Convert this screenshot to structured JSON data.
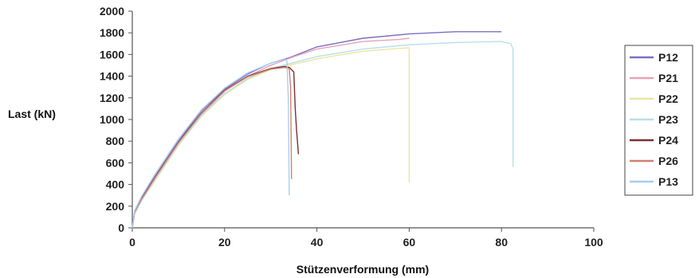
{
  "chart_data": {
    "type": "line",
    "xlabel": "Stützenverformung (mm)",
    "ylabel": "Last (kN)",
    "xlim": [
      0,
      100
    ],
    "ylim": [
      0,
      2000
    ],
    "x_ticks": [
      0,
      20,
      40,
      60,
      80,
      100
    ],
    "y_ticks": [
      0,
      200,
      400,
      600,
      800,
      1000,
      1200,
      1400,
      1600,
      1800,
      2000
    ],
    "legend_position": "right",
    "grid": false,
    "series": [
      {
        "name": "P12",
        "color": "#7b6fc4",
        "points": [
          [
            0,
            0
          ],
          [
            0.5,
            150
          ],
          [
            2,
            280
          ],
          [
            5,
            480
          ],
          [
            10,
            800
          ],
          [
            15,
            1080
          ],
          [
            20,
            1280
          ],
          [
            25,
            1420
          ],
          [
            30,
            1520
          ],
          [
            34,
            1570
          ],
          [
            40,
            1670
          ],
          [
            50,
            1750
          ],
          [
            60,
            1790
          ],
          [
            70,
            1810
          ],
          [
            80,
            1810
          ]
        ]
      },
      {
        "name": "P21",
        "color": "#e6a3b5",
        "points": [
          [
            0,
            0
          ],
          [
            0.5,
            140
          ],
          [
            2,
            260
          ],
          [
            5,
            460
          ],
          [
            10,
            780
          ],
          [
            15,
            1050
          ],
          [
            20,
            1260
          ],
          [
            25,
            1400
          ],
          [
            30,
            1500
          ],
          [
            35,
            1580
          ],
          [
            40,
            1650
          ],
          [
            50,
            1720
          ],
          [
            58,
            1740
          ],
          [
            60,
            1750
          ]
        ]
      },
      {
        "name": "P22",
        "color": "#e8e6a0",
        "points": [
          [
            0,
            0
          ],
          [
            0.5,
            130
          ],
          [
            2,
            250
          ],
          [
            5,
            440
          ],
          [
            10,
            760
          ],
          [
            15,
            1030
          ],
          [
            20,
            1230
          ],
          [
            25,
            1370
          ],
          [
            30,
            1460
          ],
          [
            40,
            1560
          ],
          [
            50,
            1630
          ],
          [
            59,
            1660
          ],
          [
            60,
            1660
          ],
          [
            60,
            1520
          ],
          [
            60,
            420
          ]
        ]
      },
      {
        "name": "P23",
        "color": "#b8dfe8",
        "points": [
          [
            0,
            0
          ],
          [
            0.5,
            130
          ],
          [
            2,
            250
          ],
          [
            5,
            450
          ],
          [
            10,
            770
          ],
          [
            15,
            1040
          ],
          [
            20,
            1240
          ],
          [
            25,
            1380
          ],
          [
            30,
            1470
          ],
          [
            40,
            1580
          ],
          [
            50,
            1650
          ],
          [
            60,
            1690
          ],
          [
            70,
            1710
          ],
          [
            80,
            1720
          ],
          [
            82,
            1700
          ],
          [
            82.5,
            1650
          ],
          [
            82.5,
            560
          ]
        ]
      },
      {
        "name": "P24",
        "color": "#7a3030",
        "points": [
          [
            0,
            0
          ],
          [
            0.5,
            150
          ],
          [
            2,
            270
          ],
          [
            5,
            470
          ],
          [
            10,
            790
          ],
          [
            15,
            1060
          ],
          [
            20,
            1270
          ],
          [
            25,
            1400
          ],
          [
            30,
            1470
          ],
          [
            33,
            1490
          ],
          [
            34,
            1480
          ],
          [
            35,
            1440
          ],
          [
            35.3,
            1100
          ],
          [
            35.6,
            900
          ],
          [
            36,
            680
          ]
        ]
      },
      {
        "name": "P26",
        "color": "#d48070",
        "points": [
          [
            0,
            0
          ],
          [
            0.5,
            145
          ],
          [
            2,
            265
          ],
          [
            5,
            465
          ],
          [
            10,
            785
          ],
          [
            15,
            1055
          ],
          [
            20,
            1265
          ],
          [
            25,
            1395
          ],
          [
            30,
            1465
          ],
          [
            33,
            1480
          ],
          [
            34,
            1470
          ],
          [
            34.3,
            1300
          ],
          [
            34.5,
            450
          ]
        ]
      },
      {
        "name": "P13",
        "color": "#a8cff0",
        "points": [
          [
            0,
            0
          ],
          [
            0.5,
            160
          ],
          [
            2,
            290
          ],
          [
            5,
            500
          ],
          [
            10,
            820
          ],
          [
            15,
            1090
          ],
          [
            20,
            1290
          ],
          [
            25,
            1430
          ],
          [
            30,
            1520
          ],
          [
            33,
            1560
          ],
          [
            33.5,
            1540
          ],
          [
            33.8,
            1200
          ],
          [
            34,
            300
          ]
        ]
      }
    ]
  }
}
